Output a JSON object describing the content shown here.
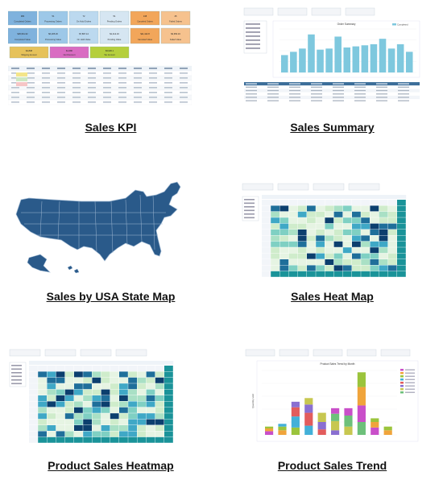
{
  "reports": [
    {
      "title": "Sales KPI",
      "thumb": "kpi-tiles"
    },
    {
      "title": "Sales Summary",
      "thumb": "summary-bar-chart"
    },
    {
      "title": "Sales by USA State Map",
      "thumb": "usa-map"
    },
    {
      "title": "Sales Heat Map",
      "thumb": "heat-map-grid"
    },
    {
      "title": "Product Sales Heatmap",
      "thumb": "product-heat-map-grid"
    },
    {
      "title": "Product Sales Trend",
      "thumb": "stacked-bar-chart"
    }
  ],
  "kpi_tiles": [
    {
      "value": "384",
      "label": "Completed Orders",
      "color": "#7fb2dd"
    },
    {
      "value": "51",
      "label": "Processing Orders",
      "color": "#9dc8e8"
    },
    {
      "value": "72",
      "label": "On Hold Orders",
      "color": "#bcd9ef"
    },
    {
      "value": "51",
      "label": "Pending Orders",
      "color": "#d6e6f2"
    },
    {
      "value": "138",
      "label": "Canceled Orders",
      "color": "#f2a65a"
    },
    {
      "value": "45",
      "label": "Failed Orders",
      "color": "#f6c28e"
    },
    {
      "value": "$36,961.62",
      "label": "Completed Value",
      "color": "#7fb2dd"
    },
    {
      "value": "$6,205.26",
      "label": "Processing Value",
      "color": "#9dc8e8"
    },
    {
      "value": "$7,897.14",
      "label": "On Hold Value",
      "color": "#bcd9ef"
    },
    {
      "value": "$1,412.16",
      "label": "Pending Value",
      "color": "#d6e6f2"
    },
    {
      "value": "$11,442.8",
      "label": "Canceled Value",
      "color": "#f2a65a"
    },
    {
      "value": "$3,953.16",
      "label": "Failed Value",
      "color": "#f6c28e"
    },
    {
      "value": "$4,838",
      "label": "Shipping Amount",
      "color": "#e6c25a"
    },
    {
      "value": "$1,680",
      "label": "Net Discount",
      "color": "#d96cc2"
    },
    {
      "value": "$3,936.1",
      "label": "Tax Amount",
      "color": "#b5cf3c"
    }
  ],
  "summary_chart_data": {
    "type": "bar",
    "title": "Order Summary",
    "legend": "Completed",
    "values": [
      16,
      19,
      22,
      35,
      21,
      22,
      33,
      23,
      24,
      25,
      26,
      31,
      22,
      26,
      19
    ],
    "color": "#7ec8de"
  },
  "trend_chart_data": {
    "type": "bar",
    "title": "Product Sales Trend by Month",
    "ylabel": "Quantity sold",
    "stacks": [
      [
        4,
        3,
        2
      ],
      [
        5,
        4,
        3
      ],
      [
        8,
        12,
        10,
        6
      ],
      [
        10,
        14,
        9,
        7
      ],
      [
        6,
        8,
        10
      ],
      [
        5,
        10,
        8,
        6
      ],
      [
        9,
        12,
        8
      ],
      [
        14,
        18,
        20,
        16
      ],
      [
        8,
        6,
        4
      ],
      [
        5,
        4
      ]
    ],
    "colors": [
      "#c94fc9",
      "#f0a43b",
      "#9bc43c",
      "#43b0d8",
      "#e25c5c",
      "#8a6fd1",
      "#c7c750",
      "#6dc07a"
    ]
  },
  "colors": {
    "map_fill": "#2a5a8a",
    "map_stroke": "#9fb8d2",
    "heat_low": "#e6f4e3",
    "heat_mid": "#7fd0c3",
    "heat_high": "#1f6f9a",
    "heat_peak": "#0c3f6e",
    "total_col": "#1a9399",
    "header_row": "#3d6f9a"
  }
}
